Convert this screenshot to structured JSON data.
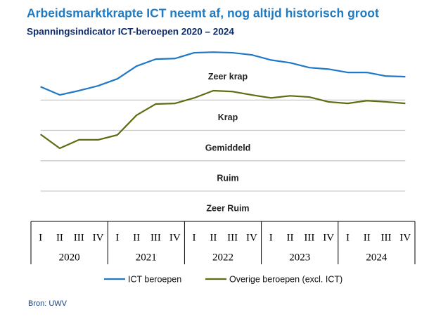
{
  "chart_data": {
    "type": "line",
    "title": "Arbeidsmarktkrapte ICT neemt af, nog altijd historisch groot",
    "subtitle": "Spanningsindicator ICT-beroepen 2020 – 2024",
    "source": "Bron: UWV",
    "categories": [
      "I",
      "II",
      "III",
      "IV",
      "I",
      "II",
      "III",
      "IV",
      "I",
      "II",
      "III",
      "IV",
      "I",
      "II",
      "III",
      "IV",
      "I",
      "II",
      "III",
      "IV"
    ],
    "years": [
      "2020",
      "2021",
      "2022",
      "2023",
      "2024"
    ],
    "series": [
      {
        "name": "ICT beroepen",
        "color": "#1f78c8",
        "values": [
          4.44,
          4.17,
          4.31,
          4.47,
          4.7,
          5.12,
          5.35,
          5.37,
          5.56,
          5.58,
          5.56,
          5.49,
          5.32,
          5.23,
          5.07,
          5.02,
          4.91,
          4.91,
          4.79,
          4.77
        ]
      },
      {
        "name": "Overige beroepen (excl. ICT)",
        "color": "#5a6e12",
        "values": [
          2.87,
          2.41,
          2.69,
          2.69,
          2.85,
          3.5,
          3.87,
          3.89,
          4.07,
          4.31,
          4.28,
          4.17,
          4.07,
          4.14,
          4.1,
          3.94,
          3.89,
          3.98,
          3.94,
          3.89
        ]
      }
    ],
    "bands": [
      {
        "label": "Zeer krap",
        "range": [
          4,
          5.7
        ]
      },
      {
        "label": "Krap",
        "range": [
          3,
          4
        ]
      },
      {
        "label": "Gemiddeld",
        "range": [
          2,
          3
        ]
      },
      {
        "label": "Ruim",
        "range": [
          1,
          2
        ]
      },
      {
        "label": "Zeer Ruim",
        "range": [
          0,
          1
        ]
      }
    ],
    "ylim": [
      0,
      5.7
    ],
    "grid": true
  }
}
